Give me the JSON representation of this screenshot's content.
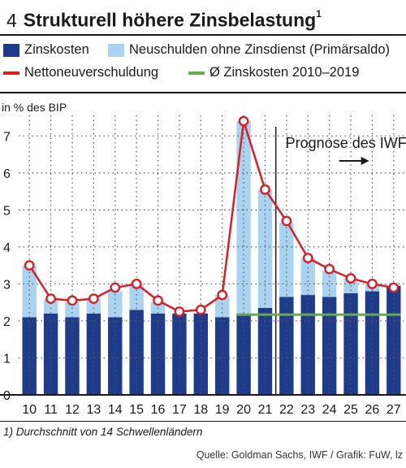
{
  "header": {
    "number": "4",
    "title": "Strukturell höhere Zinsbelastung",
    "footnote_mark": "1"
  },
  "legend": {
    "items": [
      {
        "label": "Zinskosten",
        "color": "#1f3c8c",
        "kind": "box"
      },
      {
        "label": "Neuschulden ohne Zinsdienst (Primärsaldo)",
        "color": "#a9d3f0",
        "kind": "box"
      },
      {
        "label": "Nettoneuverschuldung",
        "color": "#d61f26",
        "kind": "line"
      },
      {
        "label": "Ø Zinskosten 2010–2019",
        "color": "#6aa84f",
        "kind": "line"
      }
    ]
  },
  "unit_label": "in % des BIP",
  "chart_data": {
    "type": "bar",
    "categories": [
      "10",
      "11",
      "12",
      "13",
      "14",
      "15",
      "16",
      "17",
      "18",
      "19",
      "20",
      "21",
      "22",
      "23",
      "24",
      "25",
      "26",
      "27"
    ],
    "series": [
      {
        "name": "Zinskosten",
        "type": "stacked-bar",
        "color": "#1f3c8c",
        "values": [
          2.1,
          2.2,
          2.1,
          2.2,
          2.1,
          2.3,
          2.2,
          2.2,
          2.2,
          2.1,
          2.2,
          2.35,
          2.65,
          2.7,
          2.65,
          2.75,
          2.8,
          2.95
        ]
      },
      {
        "name": "Neuschulden ohne Zinsdienst (Primärsaldo)",
        "type": "stacked-bar",
        "color": "#a9d3f0",
        "values": [
          1.4,
          0.4,
          0.4,
          0.4,
          0.7,
          0.7,
          0.3,
          0.0,
          0.0,
          0.6,
          5.2,
          3.2,
          2.0,
          1.0,
          0.7,
          0.4,
          0.2,
          0.0
        ]
      },
      {
        "name": "Nettoneuverschuldung",
        "type": "line",
        "color": "#d61f26",
        "values": [
          3.5,
          2.6,
          2.55,
          2.6,
          2.9,
          3.0,
          2.55,
          2.25,
          2.3,
          2.7,
          7.4,
          5.55,
          4.7,
          3.7,
          3.4,
          3.15,
          3.0,
          2.9
        ]
      },
      {
        "name": "Ø Zinskosten 2010–2019",
        "type": "reference-line",
        "color": "#6aa84f",
        "value": 2.17,
        "x_range": [
          "20",
          "27"
        ]
      }
    ],
    "ylim": [
      0,
      7.6
    ],
    "yticks": [
      0,
      1,
      2,
      3,
      4,
      5,
      6,
      7
    ],
    "grid": true,
    "forecast": {
      "label": "Prognose des IWF",
      "starts_after": "21"
    },
    "ylabel": "in % des BIP",
    "title": "Strukturell höhere Zinsbelastung"
  },
  "footnote": "1) Durchschnitt von 14 Schwellenländern",
  "source": "Quelle: Goldman Sachs, IWF / Grafik: FuW, lz"
}
